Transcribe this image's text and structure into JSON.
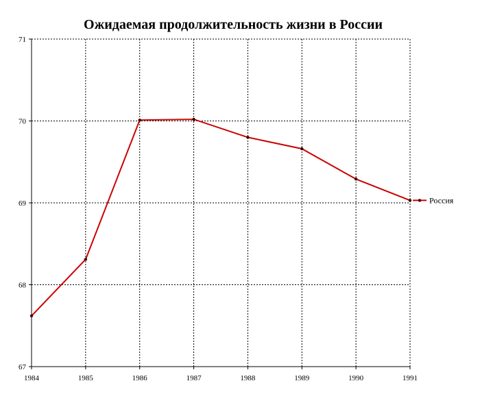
{
  "chart_data": {
    "type": "line",
    "title": "Ожидаемая продолжительность жизни в России",
    "xlabel": "",
    "ylabel": "",
    "x": [
      1984,
      1985,
      1986,
      1987,
      1988,
      1989,
      1990,
      1991
    ],
    "x_tick_labels": [
      "1984",
      "1985",
      "1986",
      "1987",
      "1988",
      "1989",
      "1990",
      "1991"
    ],
    "y_tick_labels": [
      "67",
      "68",
      "69",
      "70",
      "71"
    ],
    "ylim": [
      67,
      71
    ],
    "xlim": [
      1984,
      1991
    ],
    "grid": true,
    "legend_position": "right",
    "series": [
      {
        "name": "Россия",
        "color": "#cc0000",
        "values": [
          67.62,
          68.31,
          70.01,
          70.02,
          69.8,
          69.66,
          69.29,
          69.03
        ]
      }
    ]
  }
}
